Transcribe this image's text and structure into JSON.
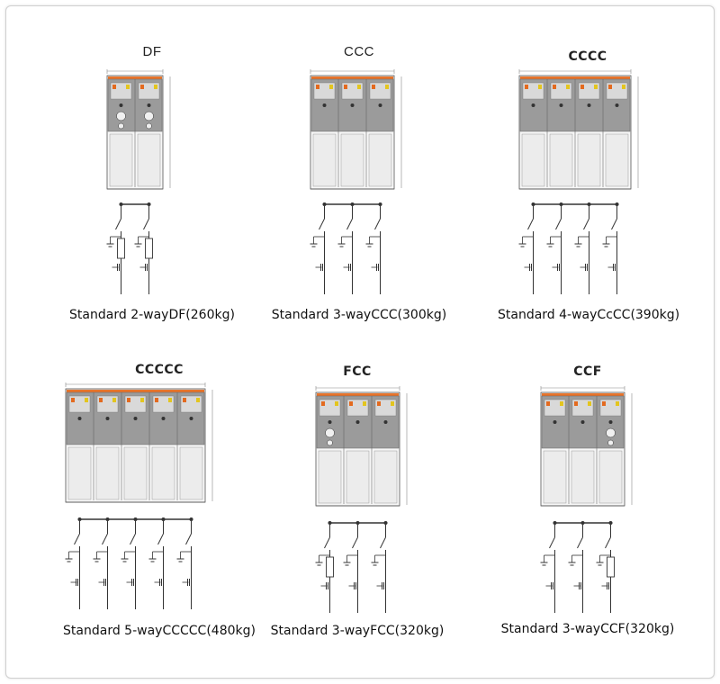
{
  "units": [
    {
      "id": "df",
      "title": "DF",
      "title_bold": false,
      "caption": "Standard 2-wayDF(260kg)",
      "config": [
        "D",
        "F"
      ]
    },
    {
      "id": "ccc",
      "title": "CCC",
      "title_bold": false,
      "caption": "Standard 3-wayCCC(300kg)",
      "config": [
        "C",
        "C",
        "C"
      ]
    },
    {
      "id": "cccc",
      "title": "CCCC",
      "title_bold": true,
      "caption": "Standard 4-wayCcCC(390kg)",
      "config": [
        "C",
        "C",
        "C",
        "C"
      ]
    },
    {
      "id": "ccccc",
      "title": "CCCCC",
      "title_bold": true,
      "caption": "Standard 5-wayCCCCC(480kg)",
      "config": [
        "C",
        "C",
        "C",
        "C",
        "C"
      ]
    },
    {
      "id": "fcc",
      "title": "FCC",
      "title_bold": true,
      "caption": "Standard 3-wayFCC(320kg)",
      "config": [
        "F",
        "C",
        "C"
      ]
    },
    {
      "id": "ccf",
      "title": "CCF",
      "title_bold": true,
      "caption": "Standard 3-wayCCF(320kg)",
      "config": [
        "C",
        "C",
        "F"
      ]
    }
  ],
  "colors": {
    "busbar_stripe": "#e8742a",
    "panel_gray": "#9b9b9b",
    "panel_light": "#ececec",
    "line": "#333333",
    "dim": "#888888"
  }
}
